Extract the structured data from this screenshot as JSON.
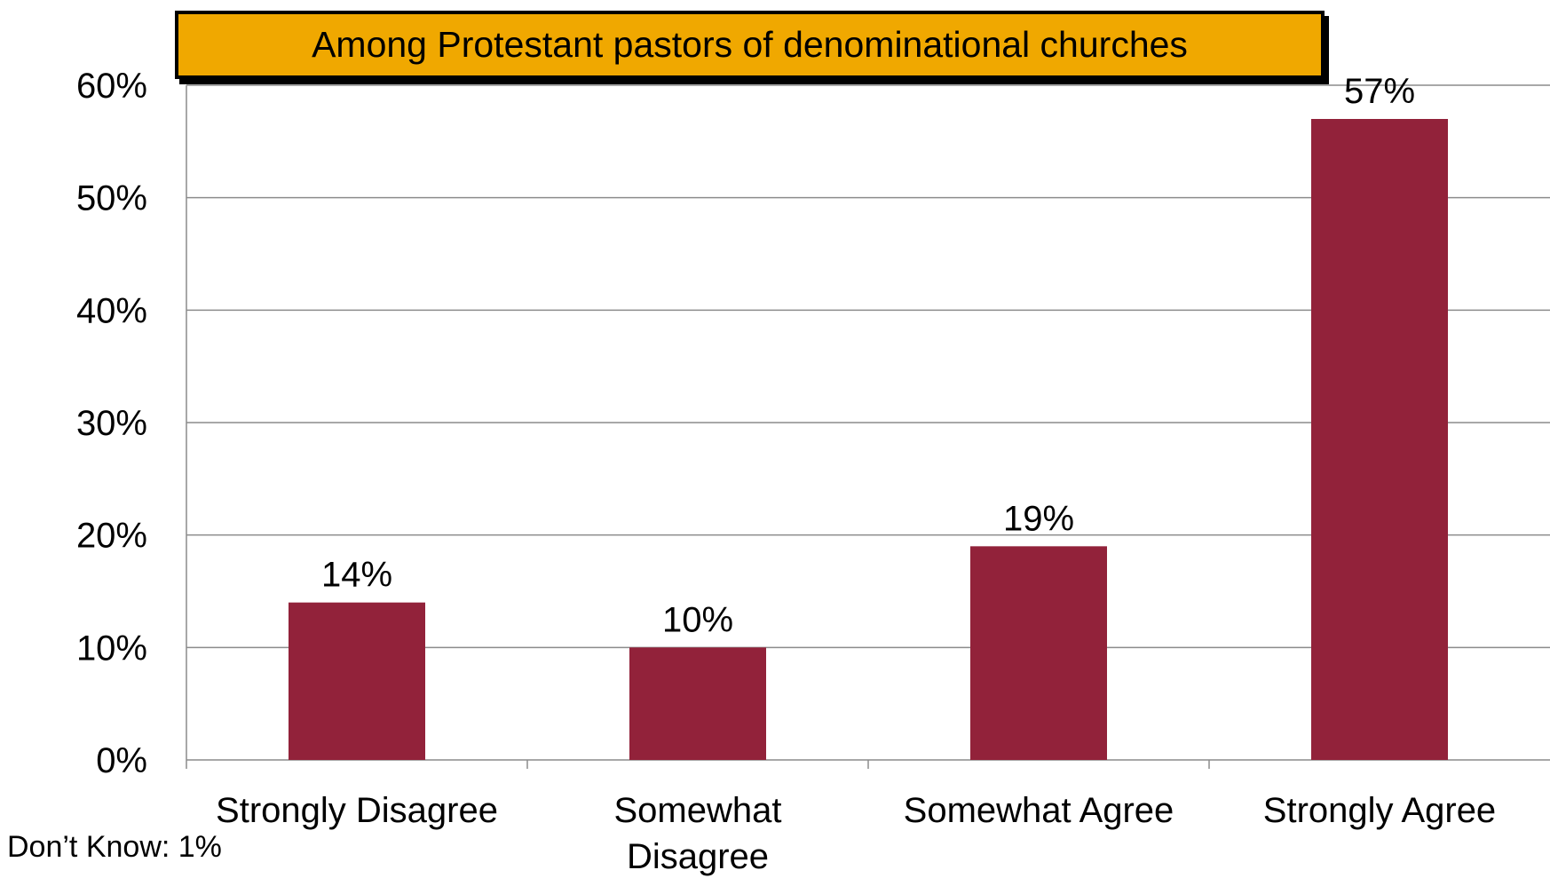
{
  "chart_data": {
    "type": "bar",
    "title": "Among Protestant pastors of denominational churches",
    "categories": [
      "Strongly Disagree",
      "Somewhat Disagree",
      "Somewhat Agree",
      "Strongly Agree"
    ],
    "category_lines": [
      [
        "Strongly Disagree"
      ],
      [
        "Somewhat",
        "Disagree"
      ],
      [
        "Somewhat Agree"
      ],
      [
        "Strongly Agree"
      ]
    ],
    "values": [
      14,
      10,
      19,
      57
    ],
    "data_labels": [
      "14%",
      "10%",
      "19%",
      "57%"
    ],
    "ylim": [
      0,
      60
    ],
    "yticks": [
      0,
      10,
      20,
      30,
      40,
      50,
      60
    ],
    "ytick_labels": [
      "0%",
      "10%",
      "20%",
      "30%",
      "40%",
      "50%",
      "60%"
    ],
    "xlabel": "",
    "ylabel": "",
    "grid": true,
    "legend": "none",
    "bar_color": "#92223A",
    "title_background": "#F0A800"
  },
  "footnote": "Don’t Know: 1%"
}
